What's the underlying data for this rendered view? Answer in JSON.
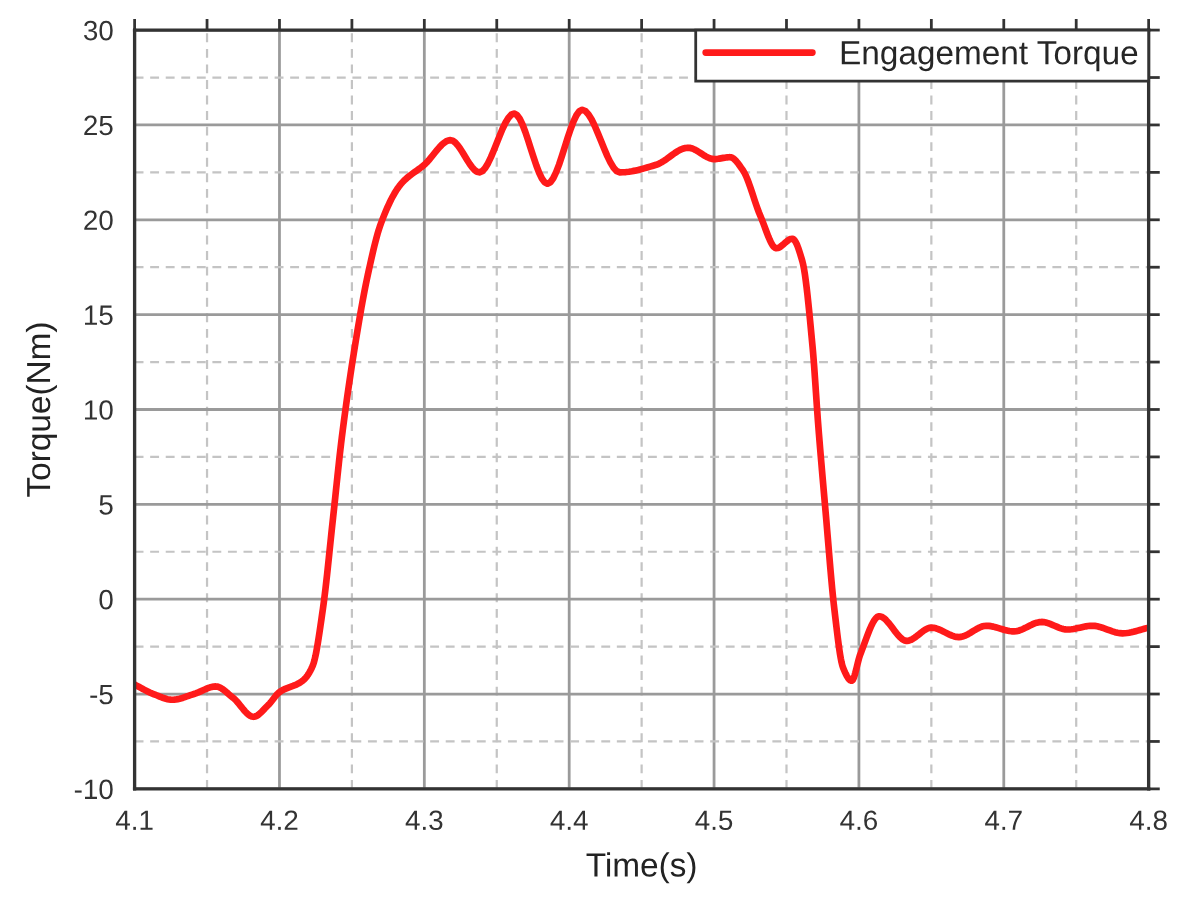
{
  "chart_data": {
    "type": "line",
    "xlabel": "Time(s)",
    "ylabel": "Torque(Nm)",
    "series": [
      {
        "name": "Engagement Torque",
        "color": "#ff1a1a",
        "x": [
          4.1,
          4.113,
          4.126,
          4.141,
          4.156,
          4.168,
          4.182,
          4.192,
          4.2,
          4.216,
          4.223,
          4.23,
          4.237,
          4.243,
          4.252,
          4.261,
          4.27,
          4.284,
          4.3,
          4.318,
          4.338,
          4.362,
          4.385,
          4.409,
          4.435,
          4.46,
          4.482,
          4.5,
          4.511,
          4.52,
          4.532,
          4.543,
          4.554,
          4.561,
          4.568,
          4.572,
          4.577,
          4.583,
          4.589,
          4.595,
          4.601,
          4.614,
          4.633,
          4.65,
          4.669,
          4.688,
          4.707,
          4.726,
          4.744,
          4.761,
          4.782,
          4.8
        ],
        "values": [
          -4.5,
          -5.0,
          -5.3,
          -5.0,
          -4.6,
          -5.2,
          -6.2,
          -5.6,
          -4.9,
          -4.3,
          -3.5,
          -0.5,
          4.3,
          8.5,
          13.3,
          17.1,
          19.8,
          21.9,
          22.9,
          24.2,
          22.5,
          25.6,
          21.9,
          25.8,
          22.5,
          22.9,
          23.8,
          23.2,
          23.3,
          22.6,
          20.2,
          18.5,
          19.0,
          17.8,
          13.3,
          9.1,
          4.6,
          -0.5,
          -3.6,
          -4.3,
          -2.9,
          -0.9,
          -2.2,
          -1.5,
          -2.0,
          -1.4,
          -1.7,
          -1.2,
          -1.6,
          -1.4,
          -1.8,
          -1.5
        ]
      }
    ],
    "xlim": [
      4.1,
      4.8
    ],
    "xticks": [
      4.1,
      {
        "value": 4.15,
        "label": null
      },
      4.2,
      {
        "value": 4.25,
        "label": null
      },
      4.3,
      {
        "value": 4.35,
        "label": null
      },
      4.4,
      {
        "value": 4.45,
        "label": null
      },
      4.5,
      {
        "value": 4.55,
        "label": null
      },
      4.6,
      {
        "value": 4.65,
        "label": null
      },
      4.7,
      {
        "value": 4.75,
        "label": null
      },
      4.8
    ],
    "ylim": [
      -10,
      30
    ],
    "yticks": [
      -10,
      {
        "value": -7.5,
        "label": null
      },
      -5,
      {
        "value": -2.5,
        "label": null
      },
      0,
      {
        "value": 2.5,
        "label": null
      },
      5,
      {
        "value": 7.5,
        "label": null
      },
      10,
      {
        "value": 12.5,
        "label": null
      },
      15,
      {
        "value": 17.5,
        "label": null
      },
      20,
      {
        "value": 22.5,
        "label": null
      },
      25,
      {
        "value": 27.5,
        "label": null
      },
      30
    ],
    "grid": true,
    "legend": "top right",
    "line_style": "solid"
  }
}
